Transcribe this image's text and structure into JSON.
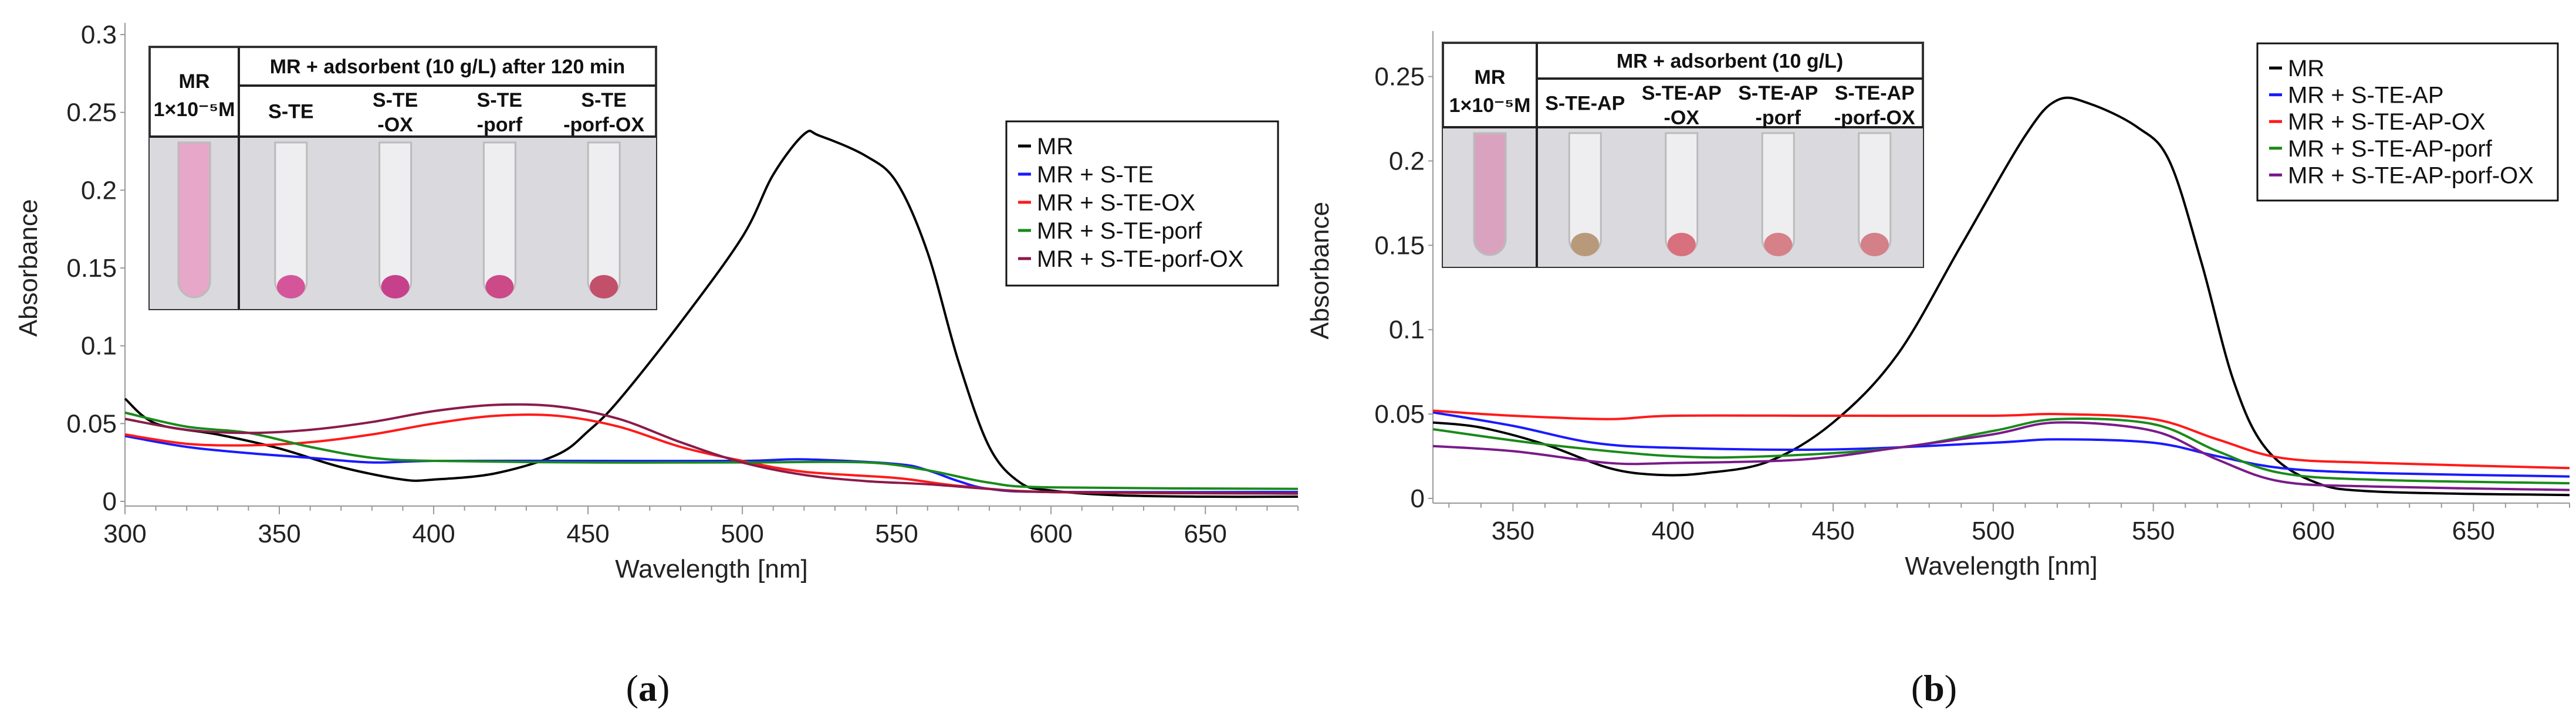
{
  "chart_data": [
    {
      "type": "line",
      "panel_label": "a",
      "xlabel": "Wavelength [nm]",
      "ylabel": "Absorbance",
      "xlim": [
        300,
        680
      ],
      "ylim": [
        0,
        0.3
      ],
      "xticks": [
        300,
        350,
        400,
        450,
        500,
        550,
        600,
        650
      ],
      "yticks": [
        0,
        0.05,
        0.1,
        0.15,
        0.2,
        0.25,
        0.3
      ],
      "ytick_labels": [
        "0",
        "0.05",
        "0.1",
        "0.15",
        "0.2",
        "0.25",
        "0.3"
      ],
      "legend_position": "right",
      "inset": {
        "col0_title": "MR",
        "col0_conc": "1×10⁻⁵M",
        "header": "MR + adsorbent (10 g/L) after 120 min",
        "columns": [
          [
            "S-TE"
          ],
          [
            "S-TE",
            "-OX"
          ],
          [
            "S-TE",
            "-porf"
          ],
          [
            "S-TE",
            "-porf-OX"
          ]
        ],
        "sample_colors": [
          "#e7a7c8",
          "#d4559a",
          "#c6408c",
          "#cc4a88",
          "#c2506a"
        ]
      },
      "series": [
        {
          "name": "MR",
          "color": "#000000",
          "x": [
            300,
            310,
            330,
            350,
            370,
            390,
            400,
            420,
            440,
            450,
            460,
            480,
            500,
            510,
            520,
            525,
            540,
            550,
            560,
            570,
            580,
            590,
            600,
            620,
            650,
            680
          ],
          "y": [
            0.066,
            0.05,
            0.043,
            0.034,
            0.022,
            0.014,
            0.014,
            0.018,
            0.03,
            0.045,
            0.065,
            0.115,
            0.17,
            0.21,
            0.236,
            0.235,
            0.222,
            0.205,
            0.16,
            0.09,
            0.035,
            0.012,
            0.007,
            0.004,
            0.003,
            0.003
          ]
        },
        {
          "name": "MR + S-TE",
          "color": "#1a1aff",
          "x": [
            300,
            320,
            340,
            360,
            380,
            400,
            450,
            500,
            520,
            550,
            560,
            570,
            580,
            600,
            680
          ],
          "y": [
            0.042,
            0.035,
            0.031,
            0.028,
            0.025,
            0.026,
            0.026,
            0.026,
            0.027,
            0.024,
            0.02,
            0.013,
            0.008,
            0.006,
            0.006
          ]
        },
        {
          "name": "MR + S-TE-OX",
          "color": "#ff1a1a",
          "x": [
            300,
            320,
            340,
            360,
            380,
            400,
            420,
            440,
            460,
            480,
            500,
            520,
            550,
            570,
            600,
            680
          ],
          "y": [
            0.043,
            0.037,
            0.036,
            0.038,
            0.043,
            0.05,
            0.055,
            0.055,
            0.048,
            0.035,
            0.026,
            0.019,
            0.015,
            0.01,
            0.006,
            0.005
          ]
        },
        {
          "name": "MR + S-TE-porf",
          "color": "#1a8a1a",
          "x": [
            300,
            320,
            340,
            360,
            380,
            400,
            450,
            500,
            540,
            560,
            580,
            600,
            680
          ],
          "y": [
            0.057,
            0.048,
            0.044,
            0.035,
            0.028,
            0.026,
            0.025,
            0.025,
            0.025,
            0.02,
            0.012,
            0.009,
            0.008
          ]
        },
        {
          "name": "MR + S-TE-porf-OX",
          "color": "#8b1a4a",
          "x": [
            300,
            320,
            340,
            360,
            380,
            400,
            420,
            440,
            460,
            480,
            500,
            520,
            540,
            560,
            580,
            600,
            680
          ],
          "y": [
            0.053,
            0.046,
            0.044,
            0.046,
            0.051,
            0.058,
            0.062,
            0.061,
            0.053,
            0.038,
            0.025,
            0.017,
            0.013,
            0.011,
            0.008,
            0.006,
            0.005
          ]
        }
      ]
    },
    {
      "type": "line",
      "panel_label": "b",
      "xlabel": "Wavelength [nm]",
      "ylabel": "Absorbance",
      "xlim": [
        325,
        680
      ],
      "ylim": [
        0,
        0.27
      ],
      "xticks": [
        350,
        400,
        450,
        500,
        550,
        600,
        650
      ],
      "yticks": [
        0,
        0.05,
        0.1,
        0.15,
        0.2,
        0.25
      ],
      "ytick_labels": [
        "0",
        "0.05",
        "0.1",
        "0.15",
        "0.2",
        "0.25"
      ],
      "legend_position": "top-right",
      "inset": {
        "col0_title": "MR",
        "col0_conc": "1×10⁻⁵M",
        "header": "MR + adsorbent (10 g/L)",
        "columns": [
          [
            "S-TE-AP"
          ],
          [
            "S-TE-AP",
            "-OX"
          ],
          [
            "S-TE-AP",
            "-porf"
          ],
          [
            "S-TE-AP",
            "-porf-OX"
          ]
        ],
        "sample_colors": [
          "#d9a3c0",
          "#b89a7a",
          "#d8707e",
          "#d68088",
          "#d48088"
        ]
      },
      "series": [
        {
          "name": "MR",
          "color": "#000000",
          "x": [
            325,
            340,
            360,
            380,
            395,
            410,
            430,
            450,
            470,
            490,
            510,
            520,
            530,
            545,
            555,
            565,
            575,
            585,
            600,
            620,
            680
          ],
          "y": [
            0.045,
            0.042,
            0.032,
            0.018,
            0.014,
            0.015,
            0.022,
            0.045,
            0.085,
            0.15,
            0.215,
            0.236,
            0.234,
            0.22,
            0.2,
            0.14,
            0.07,
            0.03,
            0.01,
            0.004,
            0.002
          ]
        },
        {
          "name": "MR + S-TE-AP",
          "color": "#1a1aff",
          "x": [
            325,
            350,
            375,
            400,
            450,
            500,
            520,
            550,
            570,
            590,
            620,
            680
          ],
          "y": [
            0.051,
            0.043,
            0.033,
            0.03,
            0.029,
            0.033,
            0.035,
            0.033,
            0.025,
            0.018,
            0.015,
            0.013
          ]
        },
        {
          "name": "MR + S-TE-AP-OX",
          "color": "#ff1a1a",
          "x": [
            325,
            350,
            380,
            400,
            450,
            500,
            520,
            550,
            570,
            590,
            620,
            680
          ],
          "y": [
            0.052,
            0.049,
            0.047,
            0.049,
            0.049,
            0.049,
            0.05,
            0.047,
            0.035,
            0.024,
            0.021,
            0.018
          ]
        },
        {
          "name": "MR + S-TE-AP-porf",
          "color": "#1a8a1a",
          "x": [
            325,
            360,
            400,
            430,
            470,
            500,
            520,
            550,
            570,
            590,
            620,
            680
          ],
          "y": [
            0.041,
            0.032,
            0.025,
            0.025,
            0.03,
            0.04,
            0.047,
            0.044,
            0.028,
            0.015,
            0.011,
            0.009
          ]
        },
        {
          "name": "MR + S-TE-AP-porf-OX",
          "color": "#7a1a8a",
          "x": [
            325,
            350,
            380,
            400,
            440,
            470,
            500,
            520,
            550,
            570,
            590,
            620,
            680
          ],
          "y": [
            0.031,
            0.028,
            0.021,
            0.021,
            0.023,
            0.03,
            0.038,
            0.045,
            0.04,
            0.023,
            0.01,
            0.007,
            0.005
          ]
        }
      ]
    }
  ]
}
